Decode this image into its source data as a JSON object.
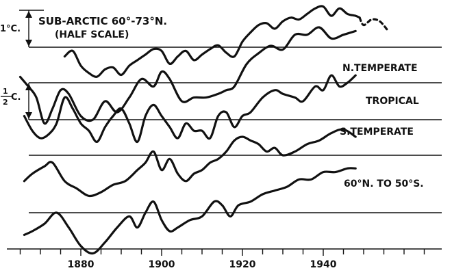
{
  "chart_data": {
    "type": "line",
    "title": "",
    "xlabel": "",
    "ylabel": "",
    "xlim": [
      1865,
      1970
    ],
    "xticks": [
      1880,
      1900,
      1920,
      1940
    ],
    "xtick_labels": [
      "1880",
      "1900",
      "1920",
      "1940"
    ],
    "minor_tick_step": 5,
    "scale_labels": {
      "one_degree": "1°C.",
      "half_degree_num": "1",
      "half_degree_den": "2",
      "half_degree_unit": "C."
    },
    "series": [
      {
        "name": "SUB-ARCTIC 60°-73°N.",
        "label_lines": [
          "SUB-ARCTIC 60°-73°N.",
          "(HALF SCALE)"
        ],
        "baseline_offset": 0,
        "dashed_from": 1949,
        "x": [
          1876,
          1878,
          1880,
          1882,
          1884,
          1886,
          1888,
          1890,
          1892,
          1894,
          1896,
          1898,
          1900,
          1902,
          1904,
          1906,
          1908,
          1910,
          1912,
          1914,
          1916,
          1918,
          1920,
          1922,
          1924,
          1926,
          1928,
          1930,
          1932,
          1934,
          1936,
          1938,
          1940,
          1942,
          1944,
          1946,
          1948,
          1949,
          1950,
          1952,
          1954,
          1956
        ],
        "values": [
          -0.25,
          -0.1,
          -0.5,
          -0.7,
          -0.8,
          -0.6,
          -0.55,
          -0.75,
          -0.5,
          -0.35,
          -0.2,
          -0.05,
          -0.1,
          -0.45,
          -0.25,
          -0.1,
          -0.35,
          -0.2,
          -0.05,
          0.05,
          -0.15,
          -0.25,
          0.15,
          0.4,
          0.6,
          0.65,
          0.5,
          0.7,
          0.8,
          0.75,
          0.9,
          1.05,
          1.1,
          0.85,
          1.05,
          0.9,
          0.85,
          0.8,
          0.6,
          0.75,
          0.7,
          0.45
        ]
      },
      {
        "name": "N.TEMPERATE",
        "label_lines": [
          "N.TEMPERATE"
        ],
        "baseline_offset": 0,
        "x": [
          1865,
          1867,
          1869,
          1871,
          1873,
          1875,
          1877,
          1880,
          1883,
          1886,
          1889,
          1892,
          1895,
          1898,
          1900,
          1902,
          1905,
          1908,
          1911,
          1914,
          1916,
          1918,
          1921,
          1924,
          1927,
          1930,
          1933,
          1936,
          1939,
          1942,
          1945,
          1948
        ],
        "values": [
          0.08,
          -0.05,
          -0.2,
          -0.55,
          -0.35,
          -0.1,
          -0.15,
          -0.45,
          -0.5,
          -0.25,
          -0.4,
          -0.2,
          0.05,
          -0.05,
          0.15,
          0.05,
          -0.25,
          -0.2,
          -0.2,
          -0.15,
          -0.1,
          -0.05,
          0.25,
          0.4,
          0.5,
          0.45,
          0.65,
          0.65,
          0.75,
          0.6,
          0.65,
          0.7
        ]
      },
      {
        "name": "TROPICAL",
        "label_lines": [
          "TROPICAL"
        ],
        "baseline_offset": 0,
        "x": [
          1866,
          1868,
          1870,
          1872,
          1874,
          1876,
          1878,
          1880,
          1882,
          1884,
          1886,
          1888,
          1890,
          1892,
          1894,
          1896,
          1898,
          1900,
          1902,
          1904,
          1906,
          1908,
          1910,
          1912,
          1914,
          1916,
          1918,
          1920,
          1922,
          1925,
          1928,
          1930,
          1933,
          1935,
          1938,
          1940,
          1942,
          1944,
          1946,
          1948
        ],
        "values": [
          0.05,
          -0.15,
          -0.25,
          -0.2,
          -0.05,
          0.3,
          0.15,
          -0.05,
          -0.15,
          -0.3,
          -0.1,
          0.05,
          0.15,
          -0.05,
          -0.3,
          0.05,
          0.2,
          0.05,
          -0.1,
          -0.25,
          -0.05,
          -0.15,
          -0.15,
          -0.25,
          0.05,
          0.1,
          -0.1,
          0.05,
          0.1,
          0.3,
          0.4,
          0.35,
          0.3,
          0.25,
          0.45,
          0.4,
          0.6,
          0.45,
          0.5,
          0.6
        ]
      },
      {
        "name": "S.TEMPERATE",
        "label_lines": [
          "S.TEMPERATE"
        ],
        "baseline_offset": 0,
        "x": [
          1866,
          1868,
          1871,
          1873,
          1876,
          1879,
          1882,
          1885,
          1888,
          1891,
          1894,
          1896,
          1898,
          1900,
          1902,
          1904,
          1906,
          1908,
          1910,
          1912,
          1914,
          1916,
          1918,
          1920,
          1922,
          1924,
          1926,
          1928,
          1930,
          1933,
          1936,
          1939,
          1942,
          1945,
          1948
        ],
        "values": [
          -0.35,
          -0.25,
          -0.15,
          -0.1,
          -0.35,
          -0.45,
          -0.55,
          -0.5,
          -0.4,
          -0.35,
          -0.2,
          -0.1,
          0.05,
          -0.2,
          -0.05,
          -0.25,
          -0.35,
          -0.25,
          -0.2,
          -0.1,
          -0.05,
          0.05,
          0.2,
          0.25,
          0.2,
          0.15,
          0.05,
          0.1,
          0.0,
          0.05,
          0.15,
          0.2,
          0.3,
          0.35,
          0.25
        ]
      },
      {
        "name": "60°N. TO 50°S.",
        "label_lines": [
          "60°N. TO 50°S."
        ],
        "baseline_offset": 0,
        "x": [
          1866,
          1868,
          1871,
          1874,
          1877,
          1880,
          1883,
          1886,
          1889,
          1892,
          1894,
          1896,
          1898,
          1900,
          1902,
          1904,
          1907,
          1910,
          1913,
          1915,
          1917,
          1919,
          1922,
          1925,
          1928,
          1931,
          1934,
          1937,
          1940,
          1943,
          1946,
          1948
        ],
        "values": [
          -0.3,
          -0.25,
          -0.15,
          0.0,
          -0.2,
          -0.45,
          -0.55,
          -0.4,
          -0.2,
          -0.05,
          -0.2,
          0.0,
          0.15,
          -0.1,
          -0.25,
          -0.2,
          -0.1,
          -0.05,
          0.15,
          0.1,
          -0.05,
          0.1,
          0.15,
          0.25,
          0.3,
          0.35,
          0.45,
          0.45,
          0.55,
          0.55,
          0.6,
          0.6
        ]
      }
    ]
  }
}
